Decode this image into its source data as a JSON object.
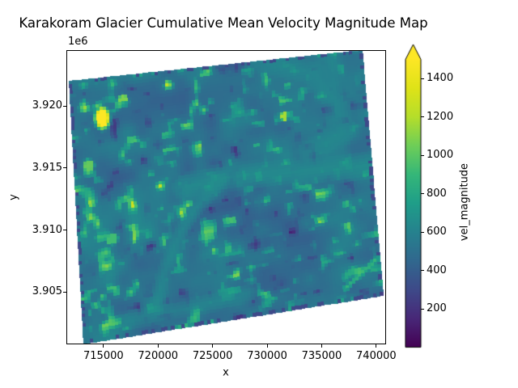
{
  "figure": {
    "background_color": "#ffffff",
    "text_color": "#000000"
  },
  "chart_data": {
    "type": "heatmap",
    "title": "Karakoram Glacier Cumulative Mean Velocity Magnitude Map",
    "xlabel": "x",
    "ylabel": "y",
    "y_axis_offset_label": "1e6",
    "xlim": [
      711600,
      740900
    ],
    "ylim": [
      3900800,
      3924500
    ],
    "grid": false,
    "x_ticks": [
      {
        "value": 715000,
        "label": "715000"
      },
      {
        "value": 720000,
        "label": "720000"
      },
      {
        "value": 725000,
        "label": "725000"
      },
      {
        "value": 730000,
        "label": "730000"
      },
      {
        "value": 735000,
        "label": "735000"
      },
      {
        "value": 740000,
        "label": "740000"
      }
    ],
    "y_ticks": [
      {
        "value": 3920000,
        "label": "3.920"
      },
      {
        "value": 3915000,
        "label": "3.915"
      },
      {
        "value": 3910000,
        "label": "3.910"
      },
      {
        "value": 3905000,
        "label": "3.905"
      }
    ],
    "colorbar": {
      "label": "vel_magnitude",
      "min": 0,
      "max": 1500,
      "extend": "max",
      "ticks": [
        {
          "value": 200,
          "label": "200"
        },
        {
          "value": 400,
          "label": "400"
        },
        {
          "value": 600,
          "label": "600"
        },
        {
          "value": 800,
          "label": "800"
        },
        {
          "value": 1000,
          "label": "1000"
        },
        {
          "value": 1200,
          "label": "1200"
        },
        {
          "value": 1400,
          "label": "1400"
        }
      ]
    },
    "colormap": {
      "name": "viridis",
      "stops": [
        [
          0.0,
          "#440154"
        ],
        [
          0.1,
          "#482878"
        ],
        [
          0.2,
          "#3e4a89"
        ],
        [
          0.3,
          "#31688e"
        ],
        [
          0.4,
          "#26828e"
        ],
        [
          0.5,
          "#1f9e89"
        ],
        [
          0.6,
          "#35b779"
        ],
        [
          0.7,
          "#6ece58"
        ],
        [
          0.8,
          "#b5de2b"
        ],
        [
          0.9,
          "#dfe318"
        ],
        [
          1.0,
          "#fde725"
        ]
      ]
    },
    "raster": {
      "corners_axes_fraction": {
        "tl": [
          0.0076,
          0.1044
        ],
        "tr": [
          0.9241,
          0.0
        ],
        "br": [
          0.9899,
          0.8324
        ],
        "bl": [
          0.0532,
          0.9973
        ]
      },
      "grid": [
        92,
        80
      ],
      "noise": {
        "seed": 3,
        "base": 0.34,
        "amplitude": 0.1,
        "speckle_threshold": 0.63,
        "speckle_gain": 1.35,
        "dark_threshold": 0.3,
        "dark_gain": 0.85,
        "edge_dark_value": 0.2,
        "edge_dark_probability": 0.35
      },
      "features": [
        {
          "name": "surge-hotspot-yellow-blob",
          "type": "blob",
          "u": 0.106,
          "v": 0.155,
          "ru": 0.018,
          "rv": 0.03,
          "value": 1.1
        },
        {
          "name": "bright-green-spot-inside-hook",
          "type": "blob",
          "u": 0.72,
          "v": 0.23,
          "ru": 0.01,
          "rv": 0.016,
          "value": 0.78
        },
        {
          "name": "green-spot-upper-left-a",
          "type": "blob",
          "u": 0.18,
          "v": 0.09,
          "ru": 0.014,
          "rv": 0.014,
          "value": 0.72
        },
        {
          "name": "green-spot-upper-left-b",
          "type": "blob",
          "u": 0.05,
          "v": 0.33,
          "ru": 0.016,
          "rv": 0.02,
          "value": 0.68
        },
        {
          "name": "green-cluster-lower-left",
          "type": "blob",
          "u": 0.115,
          "v": 0.62,
          "ru": 0.018,
          "rv": 0.02,
          "value": 0.62
        },
        {
          "name": "glacier-hook-upper-right",
          "type": "band",
          "points": [
            [
              0.65,
              0.0
            ],
            [
              0.75,
              0.04
            ],
            [
              0.83,
              0.07
            ],
            [
              0.9,
              0.2
            ],
            [
              0.91,
              0.33
            ],
            [
              0.8,
              0.38
            ]
          ],
          "halfwidth": 0.048,
          "value": 0.42,
          "blend": 0.85
        },
        {
          "name": "smooth-right-edge-upper",
          "type": "band",
          "points": [
            [
              0.97,
              0.02
            ],
            [
              1.0,
              0.2
            ],
            [
              1.01,
              0.42
            ]
          ],
          "halfwidth": 0.07,
          "value": 0.37,
          "blend": 0.55
        },
        {
          "name": "glacier-main-trunk",
          "type": "band",
          "points": [
            [
              0.38,
              0.46
            ],
            [
              0.5,
              0.44
            ],
            [
              0.66,
              0.45
            ],
            [
              0.85,
              0.465
            ],
            [
              1.03,
              0.47
            ]
          ],
          "halfwidth": 0.055,
          "value": 0.44,
          "blend": 0.85
        },
        {
          "name": "glacier-tributary-connector",
          "type": "band",
          "points": [
            [
              0.5,
              0.45
            ],
            [
              0.4,
              0.55
            ],
            [
              0.345,
              0.63
            ],
            [
              0.28,
              0.78
            ],
            [
              0.25,
              0.91
            ]
          ],
          "halfwidth": 0.028,
          "value": 0.44,
          "blend": 0.7
        },
        {
          "name": "glacier-lower-left-tongue",
          "type": "band",
          "points": [
            [
              0.17,
              0.94
            ],
            [
              0.35,
              0.93
            ],
            [
              0.55,
              0.91
            ]
          ],
          "halfwidth": 0.038,
          "value": 0.44,
          "blend": 0.6
        },
        {
          "name": "green-streak-bottom-right",
          "type": "band",
          "points": [
            [
              0.88,
              0.95
            ],
            [
              0.99,
              0.85
            ]
          ],
          "halfwidth": 0.012,
          "value": 0.62,
          "blend": 0.9
        }
      ]
    }
  }
}
